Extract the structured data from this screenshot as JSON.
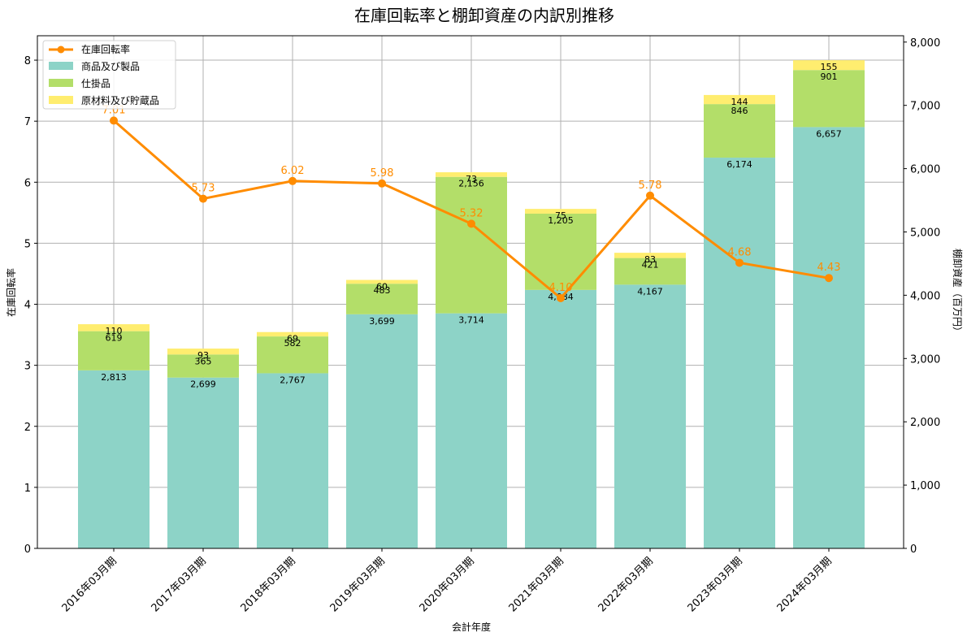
{
  "chart_data": {
    "type": "bar",
    "title": "在庫回転率と棚卸資産の内訳別推移",
    "xlabel": "会計年度",
    "ylabel_left": "在庫回転率",
    "ylabel_right": "棚卸資産（百万円）",
    "categories": [
      "2016年03月期",
      "2017年03月期",
      "2018年03月期",
      "2019年03月期",
      "2020年03月期",
      "2021年03月期",
      "2022年03月期",
      "2023年03月期",
      "2024年03月期"
    ],
    "ylim_left": [
      0,
      8.4
    ],
    "ylim_right": [
      0,
      8100
    ],
    "left_ticks": [
      "0",
      "1",
      "2",
      "3",
      "4",
      "5",
      "6",
      "7",
      "8"
    ],
    "right_ticks": [
      "0",
      "1,000",
      "2,000",
      "3,000",
      "4,000",
      "5,000",
      "6,000",
      "7,000",
      "8,000"
    ],
    "grid": true,
    "legend_position": "top-left",
    "series": [
      {
        "name": "商品及び製品",
        "kind": "bar",
        "axis": "right",
        "color": "#8dd3c7",
        "values": [
          2813,
          2699,
          2767,
          3699,
          3714,
          4084,
          4167,
          6174,
          6657
        ],
        "labels": [
          "2,813",
          "2,699",
          "2,767",
          "3,699",
          "3,714",
          "4,084",
          "4,167",
          "6,174",
          "6,657"
        ]
      },
      {
        "name": "仕掛品",
        "kind": "bar",
        "axis": "right",
        "color": "#b3de69",
        "values": [
          619,
          365,
          582,
          483,
          2156,
          1205,
          421,
          846,
          901
        ],
        "labels": [
          "619",
          "365",
          "582",
          "483",
          "2,156",
          "1,205",
          "421",
          "846",
          "901"
        ]
      },
      {
        "name": "原材料及び貯蔵品",
        "kind": "bar",
        "axis": "right",
        "color": "#ffed6f",
        "values": [
          110,
          93,
          69,
          60,
          73,
          75,
          83,
          144,
          155
        ],
        "labels": [
          "110",
          "93",
          "69",
          "60",
          "73",
          "75",
          "83",
          "144",
          "155"
        ]
      },
      {
        "name": "在庫回転率",
        "kind": "line",
        "axis": "left",
        "color": "#ff8c00",
        "values": [
          7.01,
          5.73,
          6.02,
          5.98,
          5.32,
          4.1,
          5.78,
          4.68,
          4.43
        ],
        "labels": [
          "7.01",
          "5.73",
          "6.02",
          "5.98",
          "5.32",
          "4.10",
          "5.78",
          "4.68",
          "4.43"
        ]
      }
    ]
  }
}
